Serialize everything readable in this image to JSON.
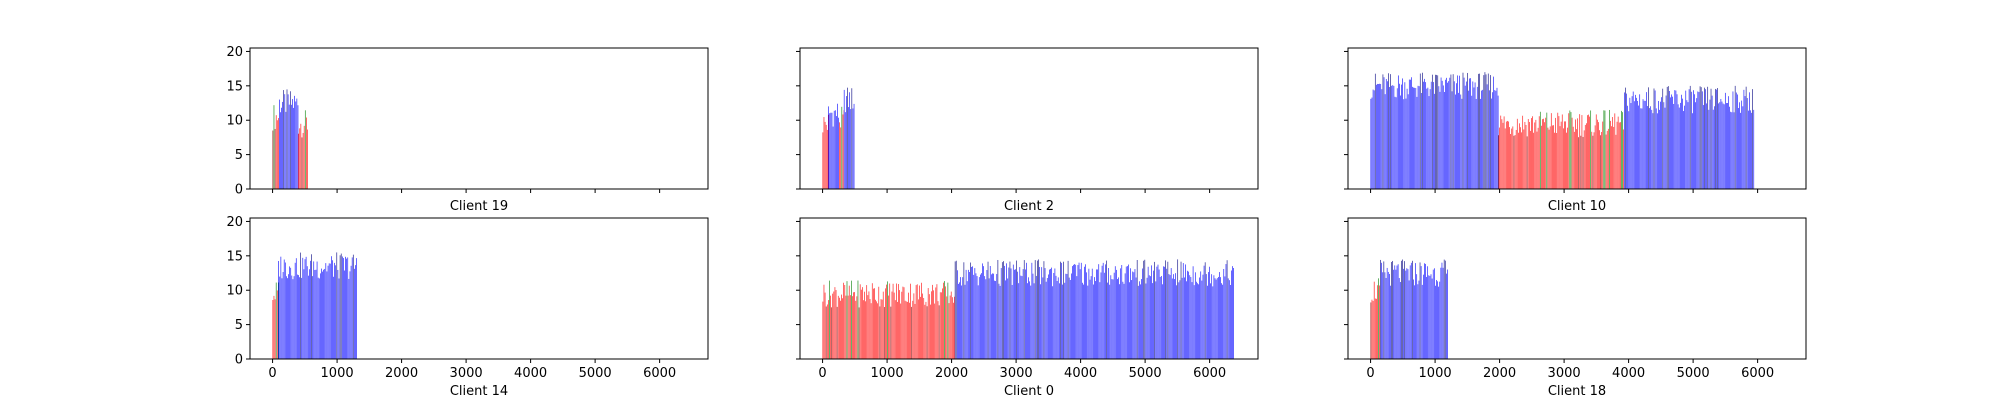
{
  "chart_data": [
    {
      "type": "bar",
      "xlabel": "Client 19",
      "xlim": [
        -350,
        6750
      ],
      "ylim": [
        0,
        20.5
      ],
      "yticks": [
        0,
        5,
        10,
        15,
        20
      ],
      "xticks": [
        0,
        1000,
        2000,
        3000,
        4000,
        5000,
        6000
      ],
      "show_xticklabels": false,
      "show_yticklabels": true,
      "segments": [
        {
          "start": 0,
          "end": 100,
          "value": 10.5,
          "color": "red"
        },
        {
          "start": 100,
          "end": 400,
          "value": 12.5,
          "color": "blue"
        },
        {
          "start": 400,
          "end": 540,
          "value": 9.5,
          "color": "red"
        }
      ]
    },
    {
      "type": "bar",
      "xlabel": "Client 2",
      "xlim": [
        -350,
        6750
      ],
      "ylim": [
        0,
        20.5
      ],
      "yticks": [
        0,
        5,
        10,
        15,
        20
      ],
      "xticks": [
        0,
        1000,
        2000,
        3000,
        4000,
        5000,
        6000
      ],
      "show_xticklabels": false,
      "show_yticklabels": false,
      "segments": [
        {
          "start": 0,
          "end": 90,
          "value": 9.5,
          "color": "red"
        },
        {
          "start": 90,
          "end": 260,
          "value": 11,
          "color": "blue"
        },
        {
          "start": 260,
          "end": 330,
          "value": 10,
          "color": "red"
        },
        {
          "start": 330,
          "end": 500,
          "value": 13,
          "color": "blue"
        }
      ]
    },
    {
      "type": "bar",
      "xlabel": "Client 10",
      "xlim": [
        -350,
        6750
      ],
      "ylim": [
        0,
        20.5
      ],
      "yticks": [
        0,
        5,
        10,
        15,
        20
      ],
      "xticks": [
        0,
        1000,
        2000,
        3000,
        4000,
        5000,
        6000
      ],
      "show_xticklabels": false,
      "show_yticklabels": false,
      "segments": [
        {
          "start": 0,
          "end": 1980,
          "value": 15,
          "color": "blue"
        },
        {
          "start": 1980,
          "end": 3930,
          "value": 9.5,
          "color": "red"
        },
        {
          "start": 3930,
          "end": 5950,
          "value": 13,
          "color": "blue"
        }
      ]
    },
    {
      "type": "bar",
      "xlabel": "Client 14",
      "xlim": [
        -350,
        6750
      ],
      "ylim": [
        0,
        20.5
      ],
      "yticks": [
        0,
        5,
        10,
        15,
        20
      ],
      "xticks": [
        0,
        1000,
        2000,
        3000,
        4000,
        5000,
        6000
      ],
      "xticklabels": [
        "0",
        "1000",
        "2000",
        "3000",
        "4000",
        "5000",
        "6000"
      ],
      "show_xticklabels": true,
      "show_yticklabels": true,
      "segments": [
        {
          "start": 0,
          "end": 90,
          "value": 9.5,
          "color": "red"
        },
        {
          "start": 90,
          "end": 1300,
          "value": 13.5,
          "color": "blue"
        }
      ]
    },
    {
      "type": "bar",
      "xlabel": "Client 0",
      "xlim": [
        -350,
        6750
      ],
      "ylim": [
        0,
        20.5
      ],
      "yticks": [
        0,
        5,
        10,
        15,
        20
      ],
      "xticks": [
        0,
        1000,
        2000,
        3000,
        4000,
        5000,
        6000
      ],
      "xticklabels": [
        "0",
        "1000",
        "2000",
        "3000",
        "4000",
        "5000",
        "6000"
      ],
      "show_xticklabels": true,
      "show_yticklabels": false,
      "segments": [
        {
          "start": 0,
          "end": 2050,
          "value": 9.5,
          "color": "red"
        },
        {
          "start": 2050,
          "end": 6380,
          "value": 12.5,
          "color": "blue"
        }
      ]
    },
    {
      "type": "bar",
      "xlabel": "Client 18",
      "xlim": [
        -350,
        6750
      ],
      "ylim": [
        0,
        20.5
      ],
      "yticks": [
        0,
        5,
        10,
        15,
        20
      ],
      "xticks": [
        0,
        1000,
        2000,
        3000,
        4000,
        5000,
        6000
      ],
      "xticklabels": [
        "0",
        "1000",
        "2000",
        "3000",
        "4000",
        "5000",
        "6000"
      ],
      "show_xticklabels": true,
      "show_yticklabels": false,
      "segments": [
        {
          "start": 0,
          "end": 150,
          "value": 10,
          "color": "red"
        },
        {
          "start": 150,
          "end": 1200,
          "value": 12.5,
          "color": "blue"
        }
      ]
    }
  ]
}
